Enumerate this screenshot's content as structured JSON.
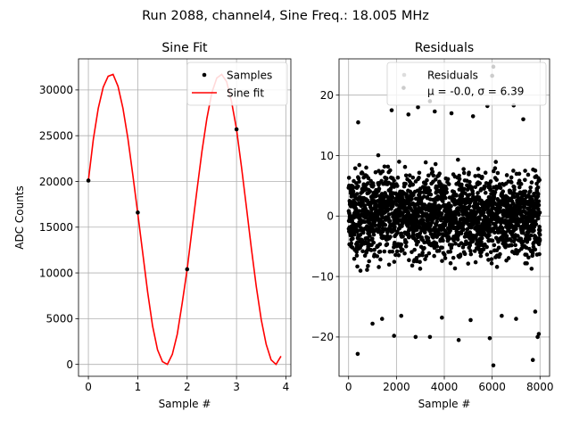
{
  "suptitle": "Run 2088, channel4, Sine Freq.: 18.005 MHz",
  "chart_data": [
    {
      "type": "line",
      "title": "Sine Fit",
      "xlabel": "Sample #",
      "ylabel": "ADC Counts",
      "xlim": [
        -0.2,
        4.1
      ],
      "ylim": [
        -1300,
        33400
      ],
      "xticks": [
        0,
        1,
        2,
        3,
        4
      ],
      "yticks": [
        0,
        5000,
        10000,
        15000,
        20000,
        25000,
        30000
      ],
      "grid": true,
      "legend_position": "top-right",
      "series": [
        {
          "name": "Samples",
          "style": "points",
          "color": "#000000",
          "x": [
            0,
            1,
            2,
            3
          ],
          "y": [
            20100,
            16600,
            10400,
            25700
          ]
        },
        {
          "name": "Sine fit",
          "style": "line",
          "color": "#ff0000",
          "x": [
            0.0,
            0.1,
            0.2,
            0.3,
            0.4,
            0.5,
            0.6,
            0.7,
            0.8,
            0.9,
            1.0,
            1.1,
            1.2,
            1.3,
            1.4,
            1.5,
            1.6,
            1.7,
            1.8,
            1.9,
            2.0,
            2.1,
            2.2,
            2.3,
            2.4,
            2.5,
            2.6,
            2.7,
            2.8,
            2.9,
            3.0,
            3.1,
            3.2,
            3.3,
            3.4,
            3.5,
            3.6,
            3.7,
            3.8,
            3.9
          ],
          "y": [
            20100,
            24600,
            28000,
            30300,
            31500,
            31700,
            30400,
            28000,
            24700,
            20700,
            16500,
            12200,
            7900,
            4200,
            1600,
            300,
            0,
            1100,
            3300,
            6700,
            10400,
            14800,
            19100,
            23300,
            26900,
            29700,
            31300,
            31700,
            30900,
            28700,
            25700,
            21600,
            17200,
            12700,
            8500,
            4900,
            2200,
            500,
            0,
            900
          ]
        }
      ]
    },
    {
      "type": "scatter",
      "title": "Residuals",
      "xlabel": "Sample #",
      "ylabel": "",
      "xlim": [
        -400,
        8400
      ],
      "ylim": [
        -26.5,
        26
      ],
      "xticks": [
        0,
        2000,
        4000,
        6000,
        8000
      ],
      "yticks": [
        -20,
        -10,
        0,
        10,
        20
      ],
      "grid": true,
      "legend_position": "top-right",
      "legend_label": "Residuals",
      "legend_stats": "μ = -0.0, σ = 6.39",
      "n_points": 8000,
      "mean": -0.0,
      "sigma": 6.39,
      "x_range": [
        0,
        8000
      ],
      "y_envelope": [
        -11.5,
        11.5
      ],
      "outliers": [
        {
          "x": 2300,
          "y": 21.2
        },
        {
          "x": 6000,
          "y": 23.2
        },
        {
          "x": 6050,
          "y": 24.7
        },
        {
          "x": 6050,
          "y": -24.7
        },
        {
          "x": 380,
          "y": -22.8
        },
        {
          "x": 7700,
          "y": -23.8
        },
        {
          "x": 1900,
          "y": -19.8
        },
        {
          "x": 2800,
          "y": -20.0
        },
        {
          "x": 3400,
          "y": -20.0
        },
        {
          "x": 4600,
          "y": -20.5
        },
        {
          "x": 5900,
          "y": -20.2
        },
        {
          "x": 7900,
          "y": -20.0
        },
        {
          "x": 7950,
          "y": -19.5
        },
        {
          "x": 3400,
          "y": 19.0
        },
        {
          "x": 5800,
          "y": 18.2
        },
        {
          "x": 1800,
          "y": 17.5
        },
        {
          "x": 2900,
          "y": 18.0
        },
        {
          "x": 3600,
          "y": 17.3
        },
        {
          "x": 4300,
          "y": 17.0
        },
        {
          "x": 6900,
          "y": 18.3
        },
        {
          "x": 2500,
          "y": 16.8
        },
        {
          "x": 5200,
          "y": 16.5
        },
        {
          "x": 400,
          "y": 15.5
        },
        {
          "x": 7300,
          "y": 16.0
        },
        {
          "x": 1000,
          "y": -17.8
        },
        {
          "x": 1400,
          "y": -17.0
        },
        {
          "x": 2200,
          "y": -16.5
        },
        {
          "x": 3900,
          "y": -16.8
        },
        {
          "x": 5100,
          "y": -17.2
        },
        {
          "x": 6400,
          "y": -16.5
        },
        {
          "x": 7000,
          "y": -17.0
        },
        {
          "x": 7800,
          "y": -15.8
        }
      ]
    }
  ]
}
